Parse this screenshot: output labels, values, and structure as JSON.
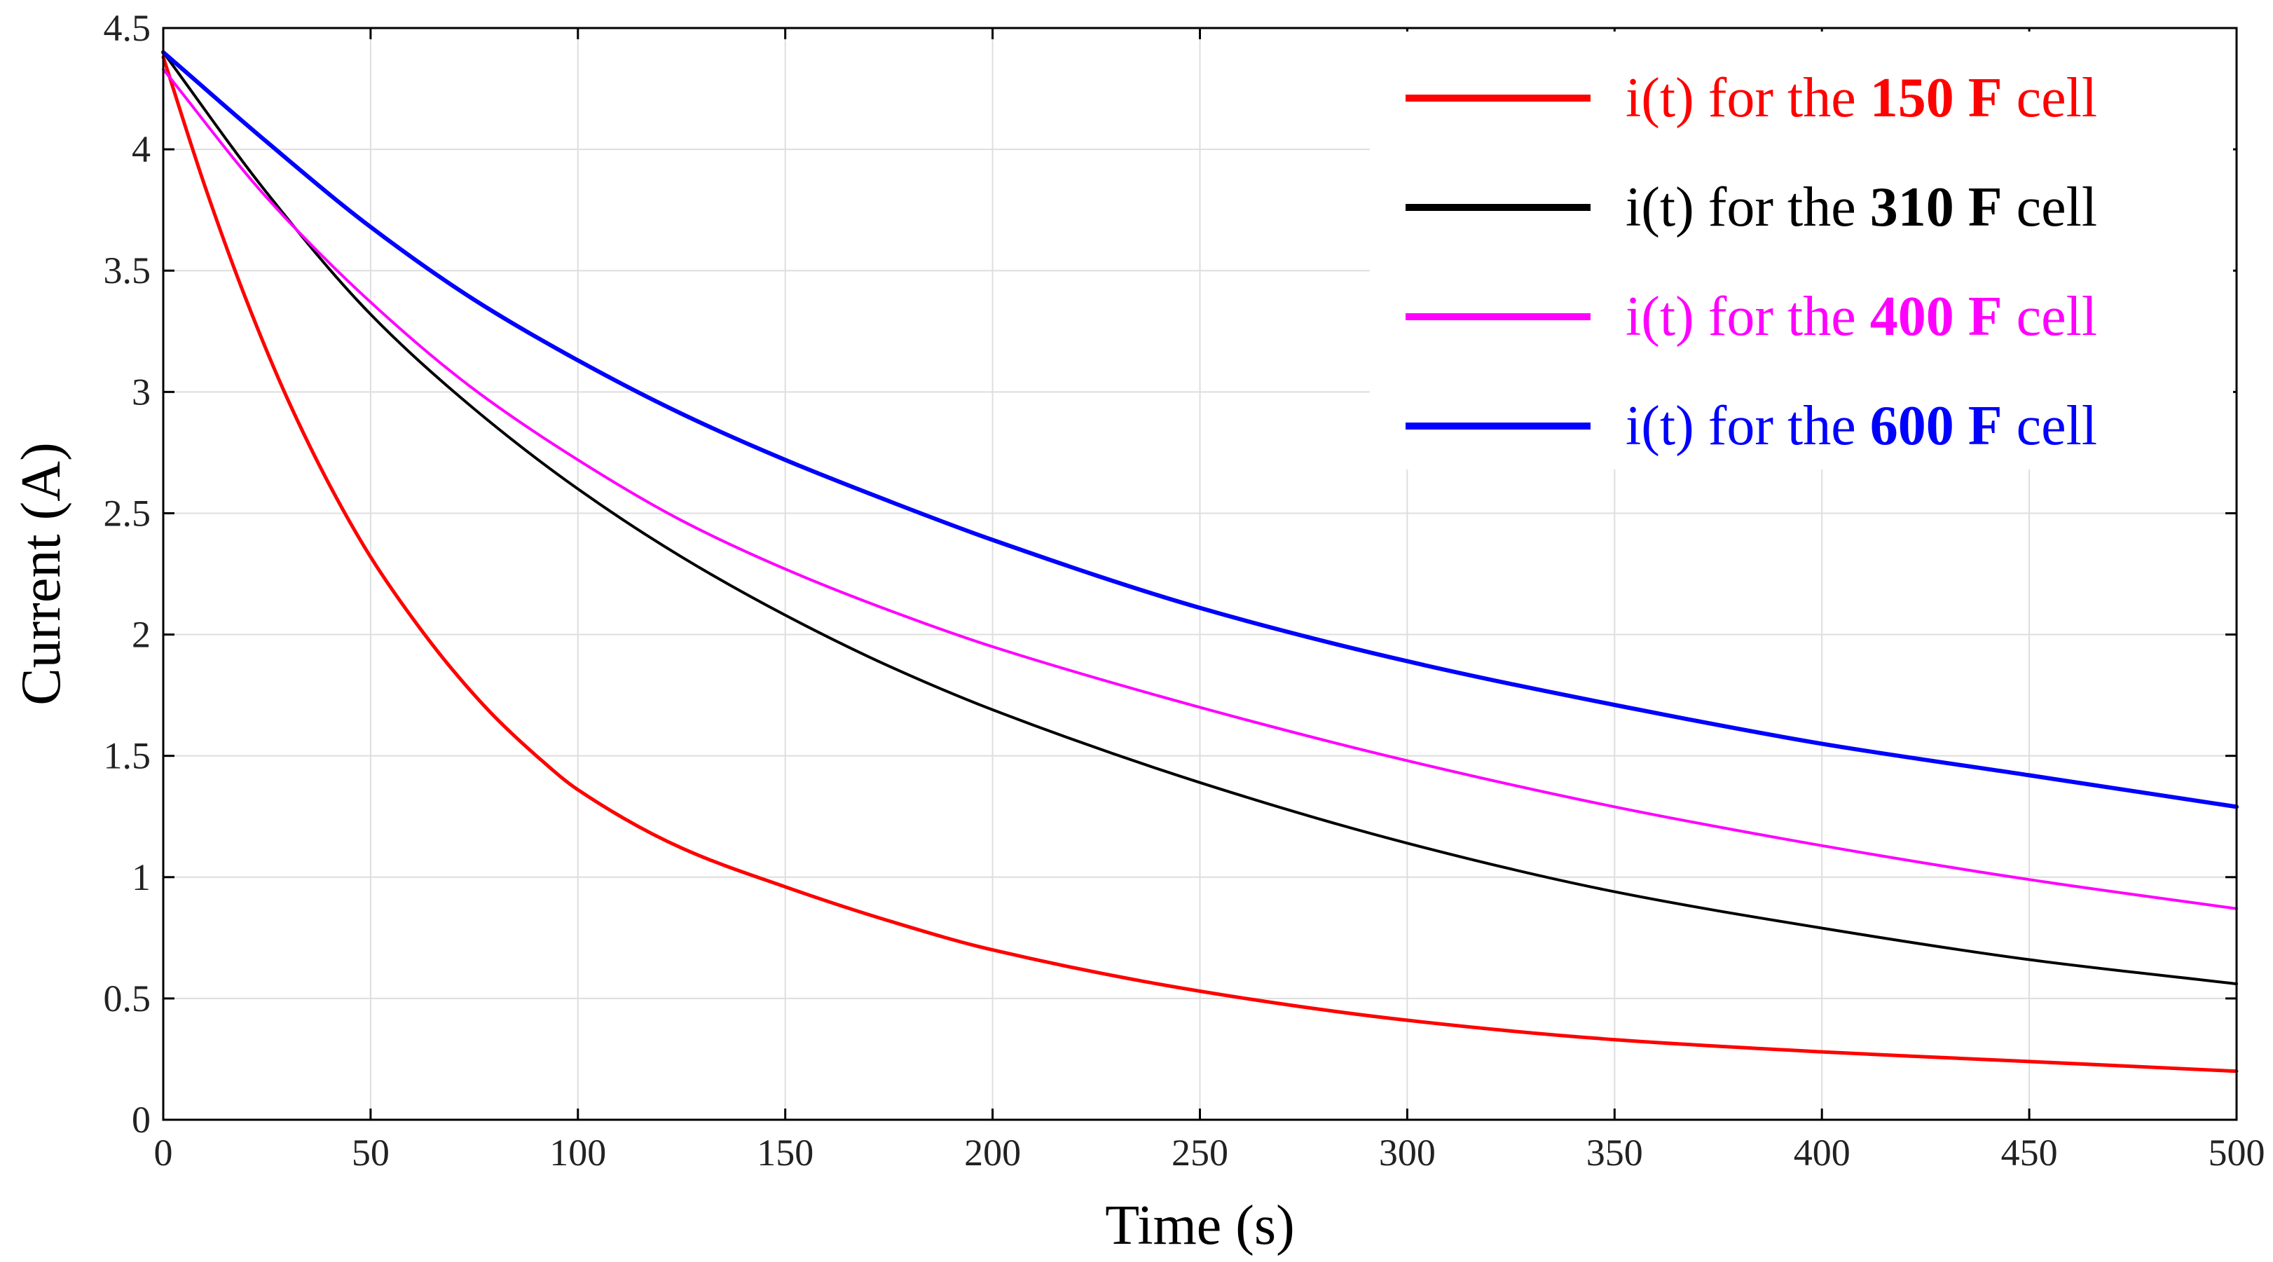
{
  "chart_data": {
    "type": "line",
    "title": "",
    "xlabel": "Time (s)",
    "ylabel": "Current (A)",
    "xlim": [
      0,
      500
    ],
    "ylim": [
      0,
      4.5
    ],
    "x_ticks": [
      0,
      50,
      100,
      150,
      200,
      250,
      300,
      350,
      400,
      450,
      500
    ],
    "y_ticks": [
      0,
      0.5,
      1,
      1.5,
      2,
      2.5,
      3,
      3.5,
      4,
      4.5
    ],
    "x_tick_labels": [
      "0",
      "50",
      "100",
      "150",
      "200",
      "250",
      "300",
      "350",
      "400",
      "450",
      "500"
    ],
    "y_tick_labels": [
      "0",
      "0.5",
      "1",
      "1.5",
      "2",
      "2.5",
      "3",
      "3.5",
      "4",
      "4.5"
    ],
    "grid": true,
    "legend_position": "top-right",
    "series": [
      {
        "name": "i(t) for the 150 F cell",
        "legend_prefix": "i(t) for the ",
        "legend_bold": "150 F",
        "legend_suffix": " cell",
        "color": "#ff0000",
        "x": [
          0,
          10,
          20,
          30,
          40,
          50,
          60,
          70,
          80,
          90,
          100,
          125,
          150,
          175,
          200,
          250,
          300,
          350,
          400,
          450,
          500
        ],
        "values": [
          4.38,
          3.85,
          3.38,
          2.97,
          2.62,
          2.32,
          2.07,
          1.85,
          1.66,
          1.5,
          1.36,
          1.12,
          0.96,
          0.82,
          0.7,
          0.53,
          0.41,
          0.33,
          0.28,
          0.24,
          0.2
        ]
      },
      {
        "name": "i(t) for the 310 F cell",
        "legend_prefix": "i(t) for the ",
        "legend_bold": "310 F",
        "legend_suffix": " cell",
        "color": "#000000",
        "x": [
          0,
          25,
          50,
          75,
          100,
          125,
          150,
          175,
          200,
          250,
          300,
          350,
          400,
          450,
          500
        ],
        "values": [
          4.4,
          3.82,
          3.32,
          2.93,
          2.6,
          2.32,
          2.08,
          1.87,
          1.69,
          1.39,
          1.14,
          0.94,
          0.79,
          0.66,
          0.56
        ]
      },
      {
        "name": "i(t) for the 400 F cell",
        "legend_prefix": "i(t) for the ",
        "legend_bold": "400 F",
        "legend_suffix": " cell",
        "color": "#ff00ff",
        "x": [
          0,
          25,
          50,
          75,
          100,
          125,
          150,
          175,
          200,
          250,
          300,
          350,
          400,
          450,
          500
        ],
        "values": [
          4.33,
          3.8,
          3.37,
          3.01,
          2.72,
          2.47,
          2.27,
          2.1,
          1.95,
          1.7,
          1.48,
          1.29,
          1.13,
          0.99,
          0.87
        ]
      },
      {
        "name": "i(t) for the 600 F cell",
        "legend_prefix": "i(t) for the ",
        "legend_bold": "600 F",
        "legend_suffix": " cell",
        "color": "#0000ff",
        "x": [
          0,
          25,
          50,
          75,
          100,
          125,
          150,
          175,
          200,
          250,
          300,
          350,
          400,
          450,
          500
        ],
        "values": [
          4.4,
          4.03,
          3.68,
          3.38,
          3.13,
          2.91,
          2.72,
          2.55,
          2.39,
          2.11,
          1.89,
          1.71,
          1.55,
          1.42,
          1.29
        ]
      }
    ]
  }
}
